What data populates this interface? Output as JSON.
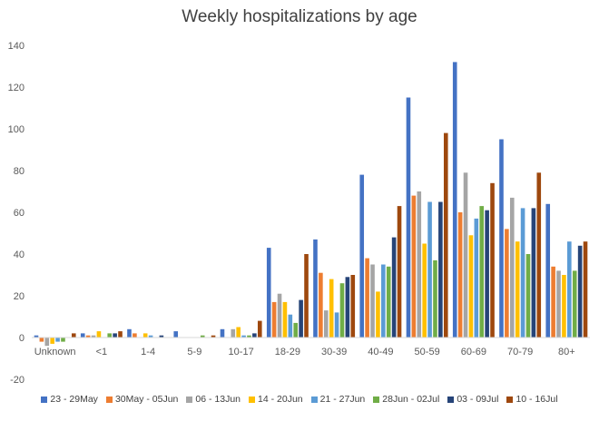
{
  "chart_data": {
    "type": "bar",
    "title": "Weekly hospitalizations by age",
    "xlabel": "",
    "ylabel": "",
    "ylim": [
      -20,
      140
    ],
    "yticks": [
      -20,
      0,
      20,
      40,
      60,
      80,
      100,
      120,
      140
    ],
    "grid": false,
    "legend_position": "bottom",
    "categories": [
      "Unknown",
      "<1",
      "1-4",
      "5-9",
      "10-17",
      "18-29",
      "30-39",
      "40-49",
      "50-59",
      "60-69",
      "70-79",
      "80+"
    ],
    "series": [
      {
        "name": "23 - 29May",
        "color": "#4472C4",
        "values": [
          1,
          2,
          4,
          3,
          4,
          43,
          47,
          78,
          115,
          132,
          95,
          64
        ]
      },
      {
        "name": "30May - 05Jun",
        "color": "#ED7D31",
        "values": [
          -2,
          1,
          2,
          0,
          0,
          17,
          31,
          38,
          68,
          60,
          52,
          34
        ]
      },
      {
        "name": "06 - 13Jun",
        "color": "#A5A5A5",
        "values": [
          -4,
          1,
          0,
          0,
          4,
          21,
          13,
          35,
          70,
          79,
          67,
          32
        ]
      },
      {
        "name": "14 - 20Jun",
        "color": "#FFC000",
        "values": [
          -3,
          3,
          2,
          0,
          5,
          17,
          28,
          22,
          45,
          49,
          46,
          30
        ]
      },
      {
        "name": "21 - 27Jun",
        "color": "#5B9BD5",
        "values": [
          -2,
          0,
          1,
          0,
          1,
          11,
          12,
          35,
          65,
          57,
          62,
          46
        ]
      },
      {
        "name": "28Jun - 02Jul",
        "color": "#70AD47",
        "values": [
          -2,
          2,
          0,
          1,
          1,
          7,
          26,
          34,
          37,
          63,
          40,
          32
        ]
      },
      {
        "name": "03 - 09Jul",
        "color": "#264478",
        "values": [
          0,
          2,
          1,
          0,
          2,
          18,
          29,
          48,
          65,
          61,
          62,
          44
        ]
      },
      {
        "name": "10 - 16Jul",
        "color": "#9E480E",
        "values": [
          2,
          3,
          0,
          1,
          8,
          40,
          30,
          63,
          98,
          74,
          79,
          46
        ]
      }
    ]
  }
}
